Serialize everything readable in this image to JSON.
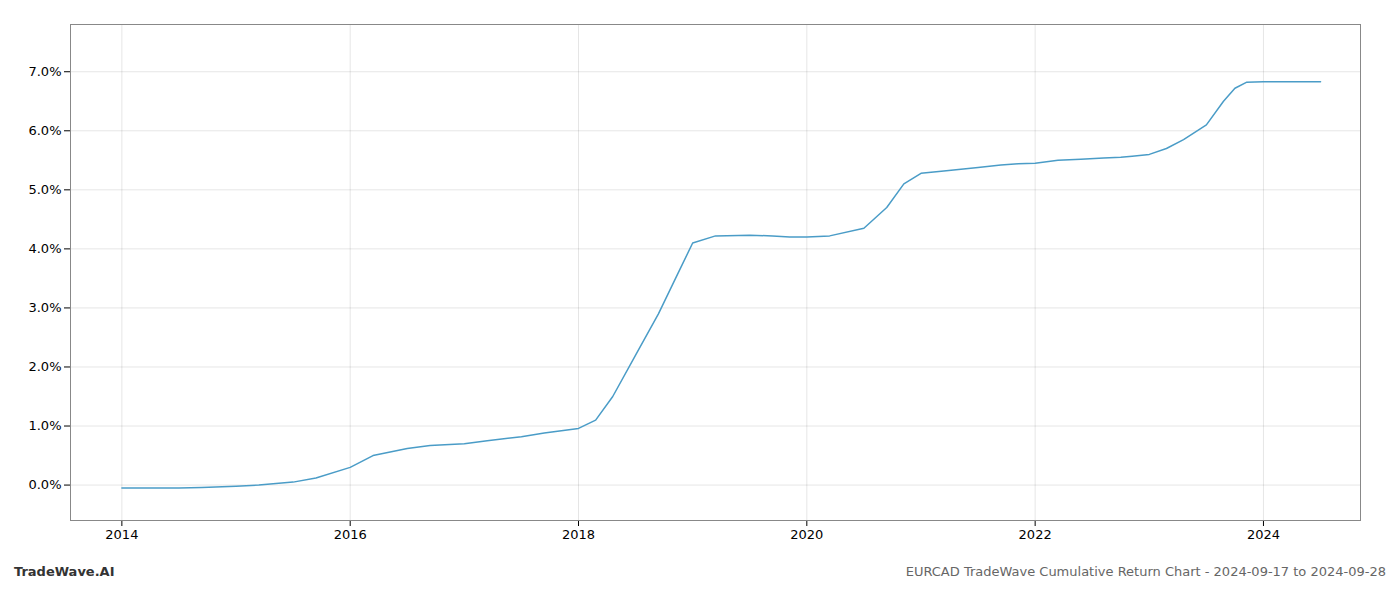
{
  "chart_data": {
    "type": "line",
    "x": [
      2014.0,
      2014.2,
      2014.5,
      2014.7,
      2015.0,
      2015.2,
      2015.5,
      2015.7,
      2016.0,
      2016.2,
      2016.5,
      2016.7,
      2017.0,
      2017.2,
      2017.5,
      2017.7,
      2017.85,
      2018.0,
      2018.15,
      2018.3,
      2018.5,
      2018.7,
      2018.85,
      2019.0,
      2019.2,
      2019.5,
      2019.7,
      2019.85,
      2020.0,
      2020.2,
      2020.5,
      2020.7,
      2020.85,
      2021.0,
      2021.2,
      2021.5,
      2021.7,
      2021.85,
      2022.0,
      2022.2,
      2022.4,
      2022.6,
      2022.75,
      2022.85,
      2023.0,
      2023.15,
      2023.3,
      2023.5,
      2023.65,
      2023.75,
      2023.85,
      2024.0,
      2024.2,
      2024.5
    ],
    "values": [
      -0.05,
      -0.05,
      -0.05,
      -0.04,
      -0.02,
      0.0,
      0.05,
      0.12,
      0.3,
      0.5,
      0.62,
      0.67,
      0.7,
      0.75,
      0.82,
      0.88,
      0.92,
      0.96,
      1.1,
      1.5,
      2.2,
      2.9,
      3.5,
      4.1,
      4.22,
      4.23,
      4.22,
      4.2,
      4.2,
      4.22,
      4.35,
      4.7,
      5.1,
      5.28,
      5.32,
      5.38,
      5.42,
      5.44,
      5.45,
      5.5,
      5.52,
      5.54,
      5.55,
      5.57,
      5.6,
      5.7,
      5.85,
      6.1,
      6.5,
      6.72,
      6.82,
      6.83,
      6.83,
      6.83
    ],
    "color": "#4a9cc7",
    "xlim": [
      2013.55,
      2024.85
    ],
    "xticks": [
      2014,
      2016,
      2018,
      2020,
      2022,
      2024
    ],
    "ylim": [
      -0.6,
      7.8
    ],
    "yticks": [
      {
        "value": 0.0,
        "label": "0.0%"
      },
      {
        "value": 1.0,
        "label": "1.0%"
      },
      {
        "value": 2.0,
        "label": "2.0%"
      },
      {
        "value": 3.0,
        "label": "3.0%"
      },
      {
        "value": 4.0,
        "label": "4.0%"
      },
      {
        "value": 5.0,
        "label": "5.0%"
      },
      {
        "value": 6.0,
        "label": "6.0%"
      },
      {
        "value": 7.0,
        "label": "7.0%"
      }
    ],
    "grid": true,
    "annotations": [
      "TradeWave.AI",
      "EURCAD TradeWave Cumulative Return Chart - 2024-09-17 to 2024-09-28"
    ]
  }
}
